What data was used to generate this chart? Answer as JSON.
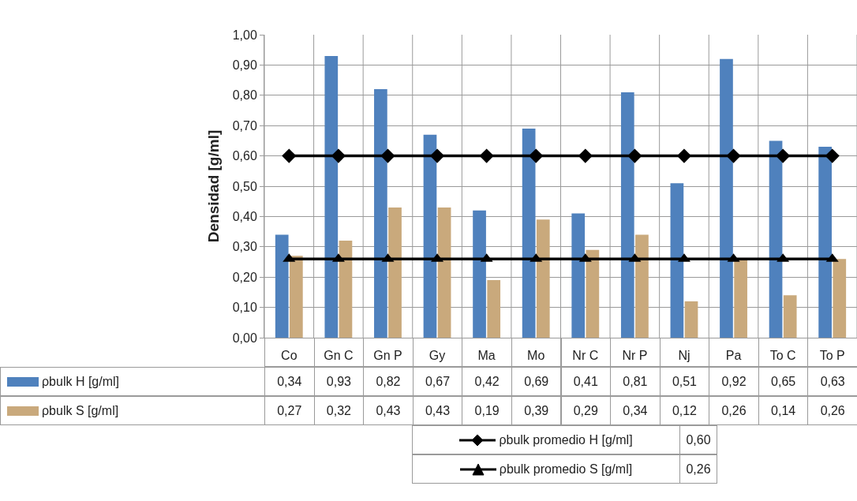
{
  "chart_data": {
    "type": "bar",
    "ylabel": "Densidad [g/ml]",
    "categories": [
      "Co",
      "Gn C",
      "Gn P",
      "Gy",
      "Ma",
      "Mo",
      "Nr C",
      "Nr P",
      "Nj",
      "Pa",
      "To C",
      "To P"
    ],
    "series": [
      {
        "name": "ρbulk H [g/ml]",
        "color": "#4f81bd",
        "values": [
          0.34,
          0.93,
          0.82,
          0.67,
          0.42,
          0.69,
          0.41,
          0.81,
          0.51,
          0.92,
          0.65,
          0.63
        ],
        "value_labels": [
          "0,34",
          "0,93",
          "0,82",
          "0,67",
          "0,42",
          "0,69",
          "0,41",
          "0,81",
          "0,51",
          "0,92",
          "0,65",
          "0,63"
        ]
      },
      {
        "name": "ρbulk S [g/ml]",
        "color": "#c9a97c",
        "values": [
          0.27,
          0.32,
          0.43,
          0.43,
          0.19,
          0.39,
          0.29,
          0.34,
          0.12,
          0.26,
          0.14,
          0.26
        ],
        "value_labels": [
          "0,27",
          "0,32",
          "0,43",
          "0,43",
          "0,19",
          "0,39",
          "0,29",
          "0,34",
          "0,12",
          "0,26",
          "0,14",
          "0,26"
        ]
      },
      {
        "name": "ρbulk promedio H [g/ml]",
        "type": "line",
        "marker": "diamond",
        "color": "#000000",
        "values": [
          0.6,
          0.6,
          0.6,
          0.6,
          0.6,
          0.6,
          0.6,
          0.6,
          0.6,
          0.6,
          0.6,
          0.6
        ]
      },
      {
        "name": "ρbulk promedio S [g/ml]",
        "type": "line",
        "marker": "triangle",
        "color": "#000000",
        "values": [
          0.26,
          0.26,
          0.26,
          0.26,
          0.26,
          0.26,
          0.26,
          0.26,
          0.26,
          0.26,
          0.26,
          0.26
        ]
      }
    ],
    "ylim": [
      0,
      1
    ],
    "yticks": [
      {
        "value": 0,
        "label": "0,00"
      },
      {
        "value": 0.1,
        "label": "0,10"
      },
      {
        "value": 0.2,
        "label": "0,20"
      },
      {
        "value": 0.3,
        "label": "0,30"
      },
      {
        "value": 0.4,
        "label": "0,40"
      },
      {
        "value": 0.5,
        "label": "0,50"
      },
      {
        "value": 0.6,
        "label": "0,60"
      },
      {
        "value": 0.7,
        "label": "0,70"
      },
      {
        "value": 0.8,
        "label": "0,80"
      },
      {
        "value": 0.9,
        "label": "0,90"
      },
      {
        "value": 1,
        "label": "1,00"
      }
    ],
    "annotations": [
      "0,60",
      "0,26"
    ],
    "grid": true,
    "legend": "bottom",
    "line_style": "solid"
  }
}
